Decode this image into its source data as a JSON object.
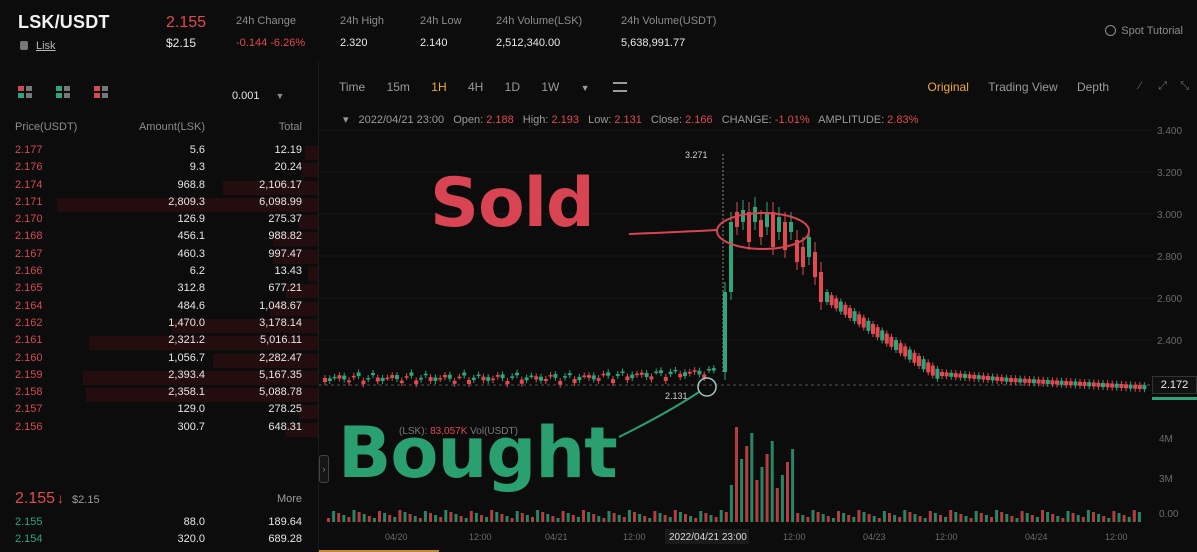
{
  "header": {
    "pair": "LSK/USDT",
    "sub_link": "Lisk",
    "last_price": "2.155",
    "last_price_usd": "$2.15",
    "stats": [
      {
        "label": "24h Change",
        "value": "-0.144 -6.26%",
        "negative": true
      },
      {
        "label": "24h High",
        "value": "2.320"
      },
      {
        "label": "24h Low",
        "value": "2.140"
      },
      {
        "label": "24h Volume(LSK)",
        "value": "2,512,340.00"
      },
      {
        "label": "24h Volume(USDT)",
        "value": "5,638,991.77"
      }
    ],
    "tutorial": "Spot Tutorial"
  },
  "orderbook": {
    "precision": "0.001",
    "headers": {
      "price": "Price(USDT)",
      "amount": "Amount(LSK)",
      "total": "Total"
    },
    "asks": [
      {
        "price": "2.177",
        "amount": "5.6",
        "total": "12.19",
        "depth": 0.04
      },
      {
        "price": "2.176",
        "amount": "9.3",
        "total": "20.24",
        "depth": 0.05
      },
      {
        "price": "2.174",
        "amount": "968.8",
        "total": "2,106.17",
        "depth": 0.3
      },
      {
        "price": "2.171",
        "amount": "2,809.3",
        "total": "6,098.99",
        "depth": 0.82
      },
      {
        "price": "2.170",
        "amount": "126.9",
        "total": "275.37",
        "depth": 0.06
      },
      {
        "price": "2.168",
        "amount": "456.1",
        "total": "988.82",
        "depth": 0.14
      },
      {
        "price": "2.167",
        "amount": "460.3",
        "total": "997.47",
        "depth": 0.14
      },
      {
        "price": "2.166",
        "amount": "6.2",
        "total": "13.43",
        "depth": 0.03
      },
      {
        "price": "2.165",
        "amount": "312.8",
        "total": "677.21",
        "depth": 0.1
      },
      {
        "price": "2.164",
        "amount": "484.6",
        "total": "1,048.67",
        "depth": 0.15
      },
      {
        "price": "2.162",
        "amount": "1,470.0",
        "total": "3,178.14",
        "depth": 0.46
      },
      {
        "price": "2.161",
        "amount": "2,321.2",
        "total": "5,016.11",
        "depth": 0.72
      },
      {
        "price": "2.160",
        "amount": "1,056.7",
        "total": "2,282.47",
        "depth": 0.33
      },
      {
        "price": "2.159",
        "amount": "2,393.4",
        "total": "5,167.35",
        "depth": 0.74
      },
      {
        "price": "2.158",
        "amount": "2,358.1",
        "total": "5,088.78",
        "depth": 0.73
      },
      {
        "price": "2.157",
        "amount": "129.0",
        "total": "278.25",
        "depth": 0.06
      },
      {
        "price": "2.156",
        "amount": "300.7",
        "total": "648.31",
        "depth": 0.1
      }
    ],
    "mid_price": "2.155",
    "mid_arrow": "↓",
    "mid_usd": "$2.15",
    "more": "More",
    "bids": [
      {
        "price": "2.155",
        "amount": "88.0",
        "total": "189.64"
      },
      {
        "price": "2.154",
        "amount": "320.0",
        "total": "689.28"
      }
    ]
  },
  "chart_toolbar": {
    "intervals": [
      "Time",
      "15m",
      "1H",
      "4H",
      "1D",
      "1W"
    ],
    "active_interval": "1H",
    "views": [
      "Original",
      "Trading View",
      "Depth"
    ],
    "active_view": "Original"
  },
  "ohlc": {
    "date": "2022/04/21 23:00",
    "open_label": "Open:",
    "open": "2.188",
    "high_label": "High:",
    "high": "2.193",
    "low_label": "Low:",
    "low": "2.131",
    "close_label": "Close:",
    "close": "2.166",
    "change_label": "CHANGE:",
    "change": "-1.01%",
    "amplitude_label": "AMPLITUDE:",
    "amplitude": "2.83%"
  },
  "volume_legend": {
    "prefix": "(LSK):",
    "value": "83,057K",
    "vol_label": "Vol(USDT)"
  },
  "price_axis": [
    "3.400",
    "3.200",
    "3.000",
    "2.800",
    "2.600",
    "2.400"
  ],
  "volume_axis": [
    "4M",
    "3M",
    "0.00"
  ],
  "time_axis": [
    "04/20",
    "12:00",
    "04/21",
    "12:00",
    "12:00",
    "04/23",
    "12:00",
    "04/24",
    "12:00"
  ],
  "crosshair_time": "2022/04/21 23:00",
  "current_price_tag": "2.172",
  "marker_high": "3.271",
  "marker_low": "2.131",
  "annotations": {
    "sold": "Sold",
    "bought": "Bought"
  },
  "colors": {
    "up": "#2ea57a",
    "down": "#e04a50",
    "accent": "#f0a93a",
    "sold": "#d84452",
    "bought": "#2aa070"
  }
}
